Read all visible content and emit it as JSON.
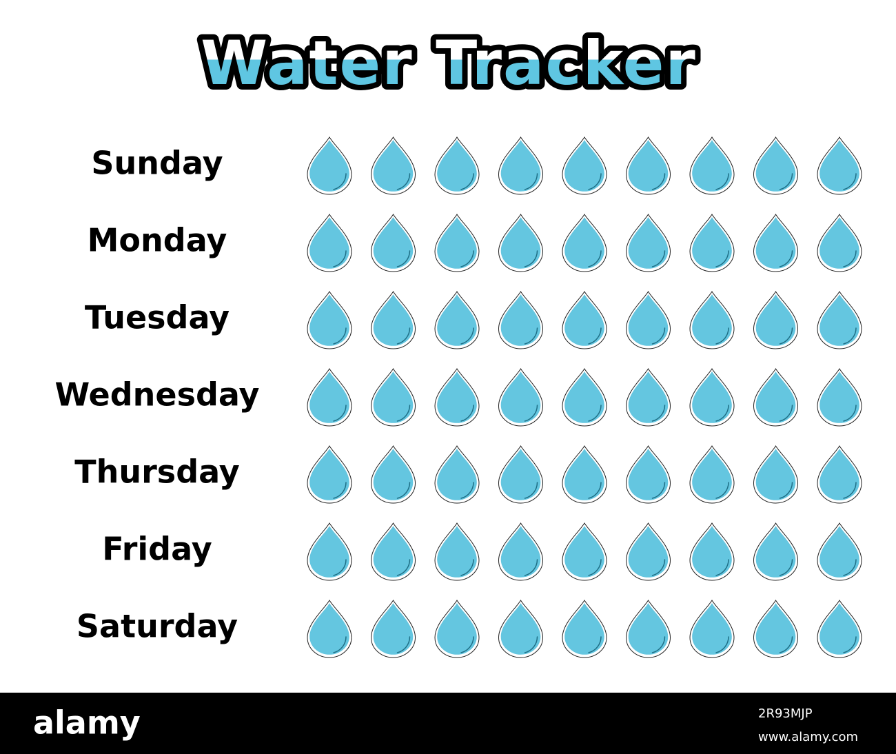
{
  "header": {
    "title": "Water Tracker"
  },
  "days": [
    "Sunday",
    "Monday",
    "Tuesday",
    "Wednesday",
    "Thursday",
    "Friday",
    "Saturday"
  ],
  "footer": {
    "brand": "alamy",
    "image_id": "2R93MJP",
    "url": "www.alamy.com"
  }
}
